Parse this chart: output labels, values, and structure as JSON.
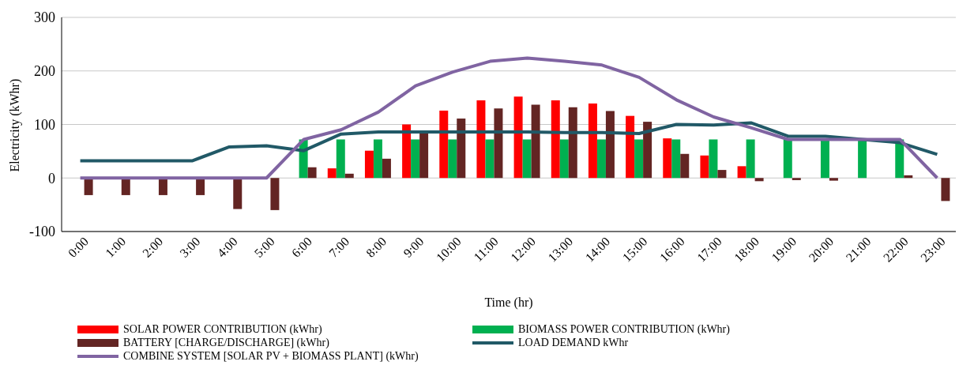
{
  "chart_data": {
    "type": "bar",
    "xlabel": "Time (hr)",
    "ylabel": "Electricity (kWhr)",
    "categories": [
      "0:00",
      "1:00",
      "2:00",
      "3:00",
      "4:00",
      "5:00",
      "6:00",
      "7:00",
      "8:00",
      "9:00",
      "10:00",
      "11:00",
      "12:00",
      "13:00",
      "14:00",
      "15:00",
      "16:00",
      "17:00",
      "18:00",
      "19:00",
      "20:00",
      "21:00",
      "22:00",
      "23:00"
    ],
    "series": [
      {
        "name": "SOLAR POWER CONTRIBUTION (kWhr)",
        "color": "#ff0000",
        "values": [
          0,
          0,
          0,
          0,
          0,
          0,
          0,
          18,
          51,
          100,
          126,
          145,
          152,
          145,
          139,
          116,
          74,
          42,
          22,
          0,
          0,
          0,
          0,
          0
        ]
      },
      {
        "name": "BIOMASS POWER CONTRIBUTION (kWhr)",
        "color": "#00b050",
        "values": [
          0,
          0,
          0,
          0,
          0,
          0,
          72,
          72,
          72,
          72,
          72,
          72,
          72,
          72,
          72,
          72,
          72,
          72,
          72,
          72,
          72,
          72,
          72,
          0
        ]
      },
      {
        "name": "BATTERY [CHARGE/DISCHARGE] (kWhr)",
        "color": "#632523",
        "values": [
          -32,
          -32,
          -32,
          -32,
          -58,
          -60,
          20,
          8,
          36,
          85,
          111,
          130,
          137,
          132,
          125,
          105,
          45,
          15,
          -6,
          -4,
          -5,
          null,
          5,
          -43
        ]
      },
      {
        "name": "LOAD DEMAND kWhr",
        "type": "line",
        "color": "#215967",
        "values": [
          32,
          32,
          32,
          32,
          58,
          60,
          51,
          82,
          86,
          86,
          86,
          86,
          86,
          85,
          85,
          83,
          100,
          99,
          103,
          78,
          78,
          72,
          66,
          44
        ]
      },
      {
        "name": "COMBINE SYSTEM [SOLAR PV + BIOMASS PLANT] (kWhr)",
        "type": "line",
        "color": "#8064a2",
        "values": [
          0,
          0,
          0,
          0,
          0,
          0,
          72,
          90,
          123,
          172,
          198,
          218,
          224,
          218,
          211,
          188,
          146,
          114,
          94,
          72,
          72,
          72,
          72,
          0
        ]
      }
    ],
    "ylim": [
      -100,
      300
    ],
    "yticks": [
      -100,
      0,
      100,
      200,
      300
    ],
    "grid": "y",
    "legend": "bottom",
    "marker": "none"
  }
}
